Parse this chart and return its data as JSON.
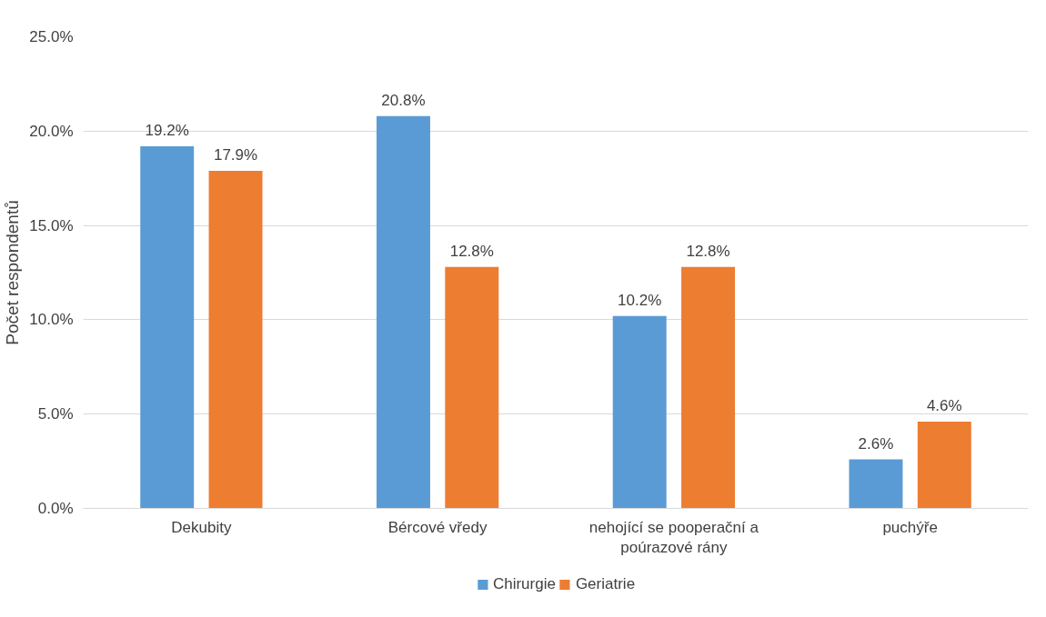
{
  "chart_data": {
    "type": "bar",
    "ylabel": "Počet respondentů",
    "categories": [
      "Dekubity",
      "Bércové vředy",
      "nehojící se pooperační a poúrazové rány",
      "puchýře"
    ],
    "series": [
      {
        "name": "Chirurgie",
        "color": "#5b9bd5",
        "values": [
          19.2,
          20.8,
          10.2,
          2.6
        ],
        "value_labels": [
          "19.2%",
          "20.8%",
          "10.2%",
          "2.6%"
        ]
      },
      {
        "name": "Geriatrie",
        "color": "#ed7d31",
        "values": [
          17.9,
          12.8,
          12.8,
          4.6
        ],
        "value_labels": [
          "17.9%",
          "12.8%",
          "12.8%",
          "4.6%"
        ]
      }
    ],
    "ylim": [
      0,
      25
    ],
    "yticks": [
      {
        "value": 0,
        "label": "0.0%"
      },
      {
        "value": 5,
        "label": "5.0%"
      },
      {
        "value": 10,
        "label": "10.0%"
      },
      {
        "value": 15,
        "label": "15.0%"
      },
      {
        "value": 20,
        "label": "20.0%"
      },
      {
        "value": 25,
        "label": "25.0%"
      }
    ],
    "grid": "y",
    "legend": "bottom"
  }
}
